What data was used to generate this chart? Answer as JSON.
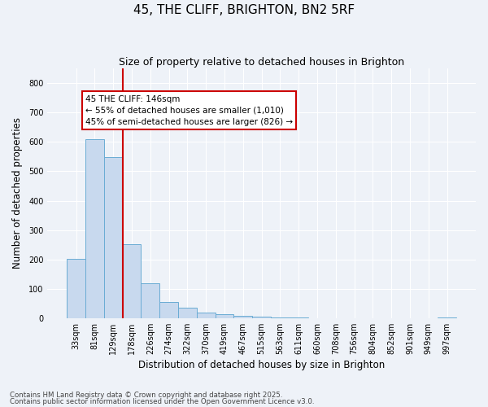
{
  "title": "45, THE CLIFF, BRIGHTON, BN2 5RF",
  "subtitle": "Size of property relative to detached houses in Brighton",
  "xlabel": "Distribution of detached houses by size in Brighton",
  "ylabel": "Number of detached properties",
  "bar_color": "#c8d9ee",
  "bar_edge_color": "#6aacd4",
  "vline_color": "#cc0000",
  "vline_x": 2.5,
  "categories": [
    "33sqm",
    "81sqm",
    "129sqm",
    "178sqm",
    "226sqm",
    "274sqm",
    "322sqm",
    "370sqm",
    "419sqm",
    "467sqm",
    "515sqm",
    "563sqm",
    "611sqm",
    "660sqm",
    "708sqm",
    "756sqm",
    "804sqm",
    "852sqm",
    "901sqm",
    "949sqm",
    "997sqm"
  ],
  "values": [
    203,
    608,
    548,
    252,
    120,
    55,
    35,
    18,
    12,
    8,
    5,
    2,
    1,
    0,
    0,
    0,
    0,
    0,
    0,
    0,
    1
  ],
  "ylim": [
    0,
    850
  ],
  "yticks": [
    0,
    100,
    200,
    300,
    400,
    500,
    600,
    700,
    800
  ],
  "annotation_title": "45 THE CLIFF: 146sqm",
  "annotation_line1": "← 55% of detached houses are smaller (1,010)",
  "annotation_line2": "45% of semi-detached houses are larger (826) →",
  "annotation_box_facecolor": "#ffffff",
  "annotation_box_edgecolor": "#cc0000",
  "footer1": "Contains HM Land Registry data © Crown copyright and database right 2025.",
  "footer2": "Contains public sector information licensed under the Open Government Licence v3.0.",
  "background_color": "#eef2f8",
  "grid_color": "#ffffff",
  "figsize": [
    6.0,
    5.0
  ],
  "dpi": 100
}
